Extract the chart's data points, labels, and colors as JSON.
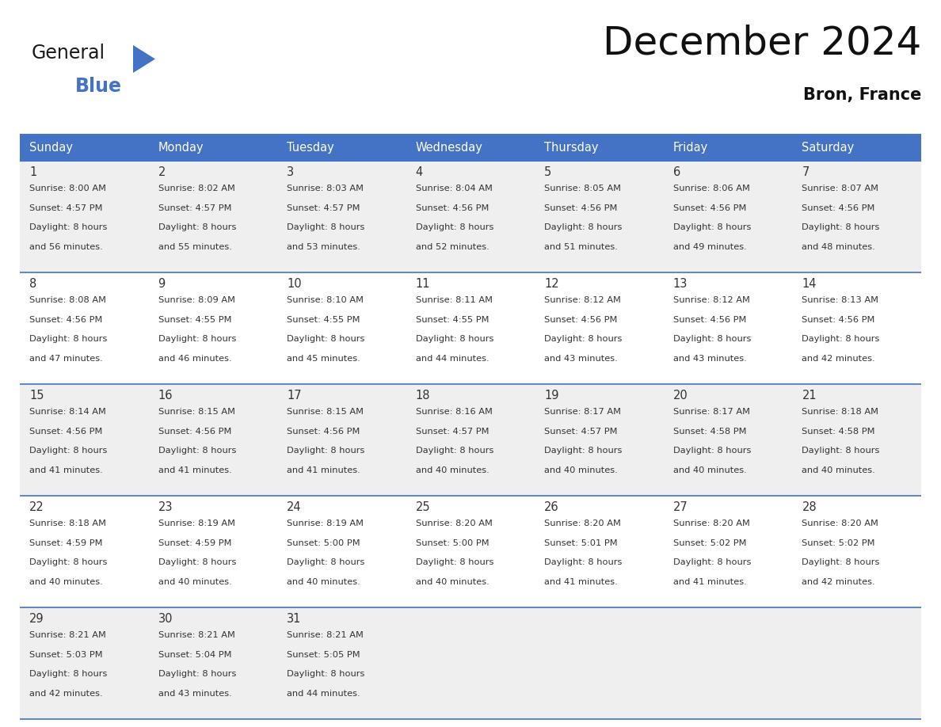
{
  "title": "December 2024",
  "subtitle": "Bron, France",
  "header_bg": "#4472C4",
  "header_text_color": "#FFFFFF",
  "day_names": [
    "Sunday",
    "Monday",
    "Tuesday",
    "Wednesday",
    "Thursday",
    "Friday",
    "Saturday"
  ],
  "row_bg_odd": "#EFEFEF",
  "row_bg_even": "#FFFFFF",
  "cell_border_color": "#4472C4",
  "date_text_color": "#333333",
  "info_text_color": "#333333",
  "days": [
    {
      "date": 1,
      "col": 0,
      "row": 0,
      "sunrise": "8:00 AM",
      "sunset": "4:57 PM",
      "daylight": "8 hours and 56 minutes."
    },
    {
      "date": 2,
      "col": 1,
      "row": 0,
      "sunrise": "8:02 AM",
      "sunset": "4:57 PM",
      "daylight": "8 hours and 55 minutes."
    },
    {
      "date": 3,
      "col": 2,
      "row": 0,
      "sunrise": "8:03 AM",
      "sunset": "4:57 PM",
      "daylight": "8 hours and 53 minutes."
    },
    {
      "date": 4,
      "col": 3,
      "row": 0,
      "sunrise": "8:04 AM",
      "sunset": "4:56 PM",
      "daylight": "8 hours and 52 minutes."
    },
    {
      "date": 5,
      "col": 4,
      "row": 0,
      "sunrise": "8:05 AM",
      "sunset": "4:56 PM",
      "daylight": "8 hours and 51 minutes."
    },
    {
      "date": 6,
      "col": 5,
      "row": 0,
      "sunrise": "8:06 AM",
      "sunset": "4:56 PM",
      "daylight": "8 hours and 49 minutes."
    },
    {
      "date": 7,
      "col": 6,
      "row": 0,
      "sunrise": "8:07 AM",
      "sunset": "4:56 PM",
      "daylight": "8 hours and 48 minutes."
    },
    {
      "date": 8,
      "col": 0,
      "row": 1,
      "sunrise": "8:08 AM",
      "sunset": "4:56 PM",
      "daylight": "8 hours and 47 minutes."
    },
    {
      "date": 9,
      "col": 1,
      "row": 1,
      "sunrise": "8:09 AM",
      "sunset": "4:55 PM",
      "daylight": "8 hours and 46 minutes."
    },
    {
      "date": 10,
      "col": 2,
      "row": 1,
      "sunrise": "8:10 AM",
      "sunset": "4:55 PM",
      "daylight": "8 hours and 45 minutes."
    },
    {
      "date": 11,
      "col": 3,
      "row": 1,
      "sunrise": "8:11 AM",
      "sunset": "4:55 PM",
      "daylight": "8 hours and 44 minutes."
    },
    {
      "date": 12,
      "col": 4,
      "row": 1,
      "sunrise": "8:12 AM",
      "sunset": "4:56 PM",
      "daylight": "8 hours and 43 minutes."
    },
    {
      "date": 13,
      "col": 5,
      "row": 1,
      "sunrise": "8:12 AM",
      "sunset": "4:56 PM",
      "daylight": "8 hours and 43 minutes."
    },
    {
      "date": 14,
      "col": 6,
      "row": 1,
      "sunrise": "8:13 AM",
      "sunset": "4:56 PM",
      "daylight": "8 hours and 42 minutes."
    },
    {
      "date": 15,
      "col": 0,
      "row": 2,
      "sunrise": "8:14 AM",
      "sunset": "4:56 PM",
      "daylight": "8 hours and 41 minutes."
    },
    {
      "date": 16,
      "col": 1,
      "row": 2,
      "sunrise": "8:15 AM",
      "sunset": "4:56 PM",
      "daylight": "8 hours and 41 minutes."
    },
    {
      "date": 17,
      "col": 2,
      "row": 2,
      "sunrise": "8:15 AM",
      "sunset": "4:56 PM",
      "daylight": "8 hours and 41 minutes."
    },
    {
      "date": 18,
      "col": 3,
      "row": 2,
      "sunrise": "8:16 AM",
      "sunset": "4:57 PM",
      "daylight": "8 hours and 40 minutes."
    },
    {
      "date": 19,
      "col": 4,
      "row": 2,
      "sunrise": "8:17 AM",
      "sunset": "4:57 PM",
      "daylight": "8 hours and 40 minutes."
    },
    {
      "date": 20,
      "col": 5,
      "row": 2,
      "sunrise": "8:17 AM",
      "sunset": "4:58 PM",
      "daylight": "8 hours and 40 minutes."
    },
    {
      "date": 21,
      "col": 6,
      "row": 2,
      "sunrise": "8:18 AM",
      "sunset": "4:58 PM",
      "daylight": "8 hours and 40 minutes."
    },
    {
      "date": 22,
      "col": 0,
      "row": 3,
      "sunrise": "8:18 AM",
      "sunset": "4:59 PM",
      "daylight": "8 hours and 40 minutes."
    },
    {
      "date": 23,
      "col": 1,
      "row": 3,
      "sunrise": "8:19 AM",
      "sunset": "4:59 PM",
      "daylight": "8 hours and 40 minutes."
    },
    {
      "date": 24,
      "col": 2,
      "row": 3,
      "sunrise": "8:19 AM",
      "sunset": "5:00 PM",
      "daylight": "8 hours and 40 minutes."
    },
    {
      "date": 25,
      "col": 3,
      "row": 3,
      "sunrise": "8:20 AM",
      "sunset": "5:00 PM",
      "daylight": "8 hours and 40 minutes."
    },
    {
      "date": 26,
      "col": 4,
      "row": 3,
      "sunrise": "8:20 AM",
      "sunset": "5:01 PM",
      "daylight": "8 hours and 41 minutes."
    },
    {
      "date": 27,
      "col": 5,
      "row": 3,
      "sunrise": "8:20 AM",
      "sunset": "5:02 PM",
      "daylight": "8 hours and 41 minutes."
    },
    {
      "date": 28,
      "col": 6,
      "row": 3,
      "sunrise": "8:20 AM",
      "sunset": "5:02 PM",
      "daylight": "8 hours and 42 minutes."
    },
    {
      "date": 29,
      "col": 0,
      "row": 4,
      "sunrise": "8:21 AM",
      "sunset": "5:03 PM",
      "daylight": "8 hours and 42 minutes."
    },
    {
      "date": 30,
      "col": 1,
      "row": 4,
      "sunrise": "8:21 AM",
      "sunset": "5:04 PM",
      "daylight": "8 hours and 43 minutes."
    },
    {
      "date": 31,
      "col": 2,
      "row": 4,
      "sunrise": "8:21 AM",
      "sunset": "5:05 PM",
      "daylight": "8 hours and 44 minutes."
    }
  ],
  "num_rows": 5,
  "num_cols": 7,
  "logo_general_color": "#1a1a1a",
  "logo_blue_color": "#4472C4",
  "logo_triangle_color": "#4472C4"
}
